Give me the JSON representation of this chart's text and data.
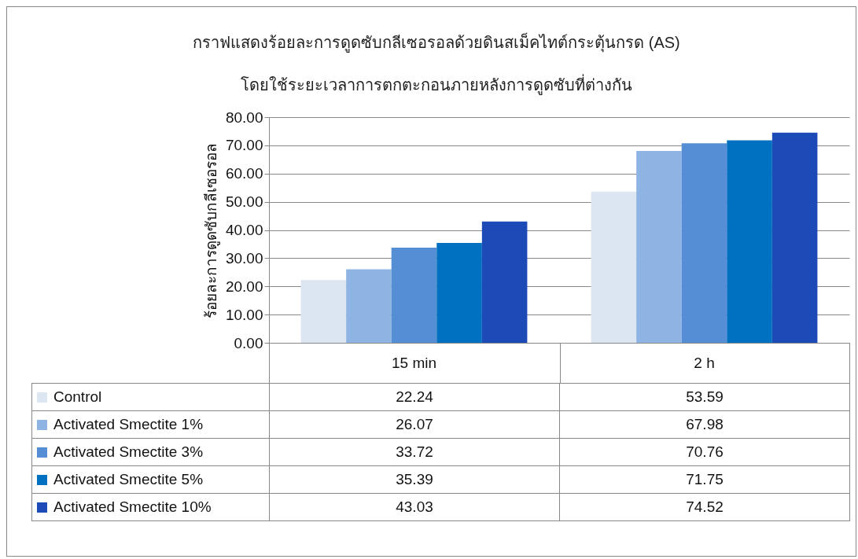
{
  "chart_data": {
    "type": "bar",
    "title": "กราฟแสดงร้อยละการดูดซับกลีเซอรอลด้วยดินสเม็คไทต์กระตุ้นกรด (AS)",
    "subtitle": "โดยใช้ระยะเวลาการตกตะกอนภายหลังการดูดซับที่ต่างกัน",
    "ylabel": "ร้อยละการดูดซับกลีเซอรอล",
    "categories": [
      "15 min",
      "2 h"
    ],
    "series": [
      {
        "name": "Control",
        "color": "#dce6f2",
        "values": [
          22.24,
          53.59
        ]
      },
      {
        "name": "Activated Smectite 1%",
        "color": "#8eb4e3",
        "values": [
          26.07,
          67.98
        ]
      },
      {
        "name": "Activated Smectite 3%",
        "color": "#558ed5",
        "values": [
          33.72,
          70.76
        ]
      },
      {
        "name": "Activated Smectite 5%",
        "color": "#0070c0",
        "values": [
          35.39,
          71.75
        ]
      },
      {
        "name": "Activated Smectite 10%",
        "color": "#1c4bb8",
        "values": [
          43.03,
          74.52
        ]
      }
    ],
    "ylim": [
      0,
      80
    ],
    "yticks": [
      {
        "value": 0,
        "label": "0.00"
      },
      {
        "value": 10,
        "label": "10.00"
      },
      {
        "value": 20,
        "label": "20.00"
      },
      {
        "value": 30,
        "label": "30.00"
      },
      {
        "value": 40,
        "label": "40.00"
      },
      {
        "value": 50,
        "label": "50.00"
      },
      {
        "value": 60,
        "label": "60.00"
      },
      {
        "value": 70,
        "label": "70.00"
      },
      {
        "value": 80,
        "label": "80.00"
      }
    ],
    "grid": "y",
    "legend": "bottom",
    "data_labels": true
  }
}
